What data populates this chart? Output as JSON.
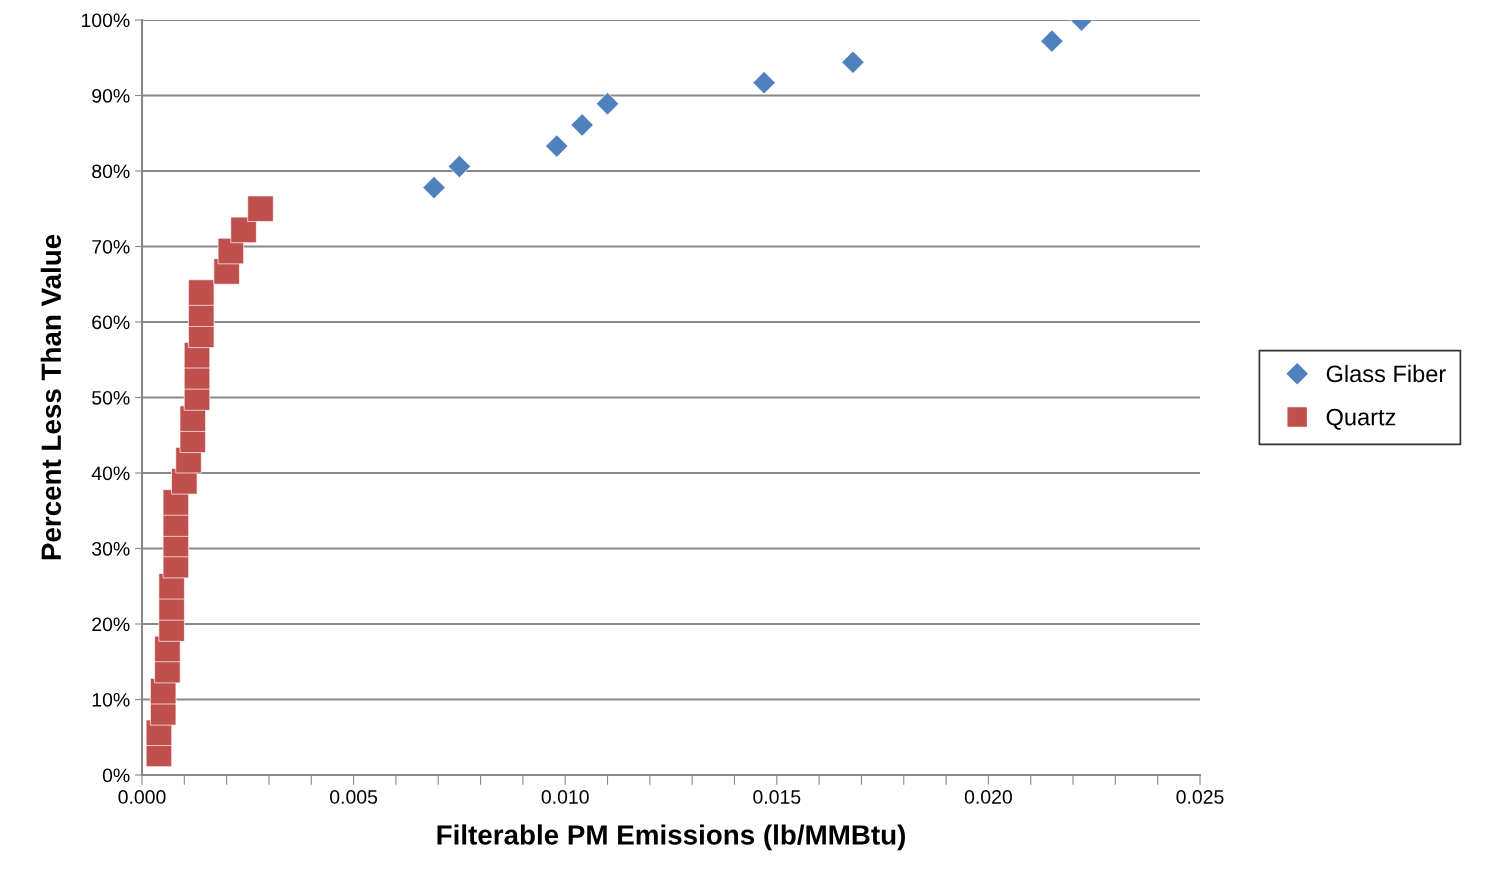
{
  "chart_data": {
    "type": "scatter",
    "xlabel": "Filterable PM Emissions (lb/MMBtu)",
    "ylabel": "Percent Less Than Value",
    "series": [
      {
        "name": "Glass Fiber",
        "color": "#4f81bd",
        "marker": "diamond",
        "x": [
          0.0069,
          0.0075,
          0.0098,
          0.0104,
          0.011,
          0.0147,
          0.0168,
          0.0215,
          0.0222
        ],
        "values": [
          77.8,
          80.6,
          83.3,
          86.1,
          88.9,
          91.7,
          94.4,
          97.2,
          100.0
        ]
      },
      {
        "name": "Quartz",
        "color": "#c0504d",
        "marker": "square",
        "x": [
          0.0004,
          0.0004,
          0.0005,
          0.0005,
          0.0006,
          0.0006,
          0.0007,
          0.0007,
          0.0007,
          0.0008,
          0.0008,
          0.0008,
          0.0008,
          0.001,
          0.0011,
          0.0012,
          0.0012,
          0.0013,
          0.0013,
          0.0013,
          0.0014,
          0.0014,
          0.0014,
          0.002,
          0.0021,
          0.0024,
          0.0028
        ],
        "values": [
          2.8,
          5.6,
          8.3,
          11.1,
          13.9,
          16.7,
          19.4,
          22.2,
          25.0,
          27.8,
          30.6,
          33.3,
          36.1,
          38.9,
          41.7,
          44.4,
          47.2,
          50.0,
          52.8,
          55.6,
          58.3,
          61.1,
          63.9,
          66.7,
          69.4,
          72.2,
          75.0
        ]
      }
    ],
    "xlim": [
      0,
      0.025
    ],
    "ylim": [
      0,
      100
    ],
    "xticks": [
      {
        "value": 0,
        "label": "0.000"
      },
      {
        "value": 0.001,
        "label": null
      },
      {
        "value": 0.002,
        "label": null
      },
      {
        "value": 0.003,
        "label": null
      },
      {
        "value": 0.004,
        "label": null
      },
      {
        "value": 0.005,
        "label": "0.005"
      },
      {
        "value": 0.006,
        "label": null
      },
      {
        "value": 0.007,
        "label": null
      },
      {
        "value": 0.008,
        "label": null
      },
      {
        "value": 0.009,
        "label": null
      },
      {
        "value": 0.01,
        "label": "0.010"
      },
      {
        "value": 0.011,
        "label": null
      },
      {
        "value": 0.012,
        "label": null
      },
      {
        "value": 0.013,
        "label": null
      },
      {
        "value": 0.014,
        "label": null
      },
      {
        "value": 0.015,
        "label": "0.015"
      },
      {
        "value": 0.016,
        "label": null
      },
      {
        "value": 0.017,
        "label": null
      },
      {
        "value": 0.018,
        "label": null
      },
      {
        "value": 0.019,
        "label": null
      },
      {
        "value": 0.02,
        "label": "0.020"
      },
      {
        "value": 0.021,
        "label": null
      },
      {
        "value": 0.022,
        "label": null
      },
      {
        "value": 0.023,
        "label": null
      },
      {
        "value": 0.024,
        "label": null
      },
      {
        "value": 0.025,
        "label": "0.025"
      }
    ],
    "yticks": [
      {
        "value": 0,
        "label": "0%"
      },
      {
        "value": 10,
        "label": "10%"
      },
      {
        "value": 20,
        "label": "20%"
      },
      {
        "value": 30,
        "label": "30%"
      },
      {
        "value": 40,
        "label": "40%"
      },
      {
        "value": 50,
        "label": "50%"
      },
      {
        "value": 60,
        "label": "60%"
      },
      {
        "value": 70,
        "label": "70%"
      },
      {
        "value": 80,
        "label": "80%"
      },
      {
        "value": 90,
        "label": "90%"
      },
      {
        "value": 100,
        "label": "100%"
      }
    ],
    "grid": "y",
    "legend": "right"
  }
}
